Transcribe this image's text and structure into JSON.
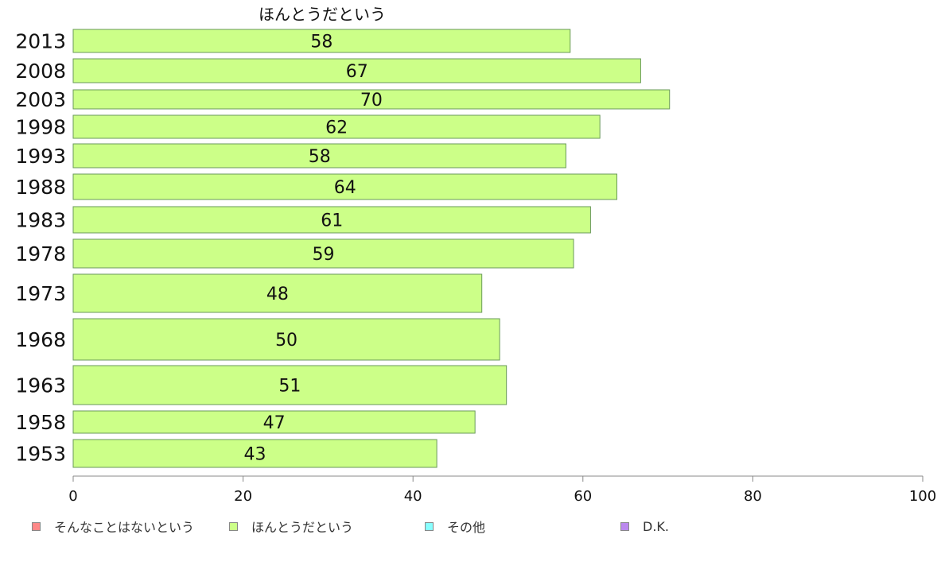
{
  "chart_data": {
    "type": "bar",
    "orientation": "horizontal",
    "title": "ほんとうだという",
    "categories": [
      "2013",
      "2008",
      "2003",
      "1998",
      "1993",
      "1988",
      "1983",
      "1978",
      "1973",
      "1968",
      "1963",
      "1958",
      "1953"
    ],
    "series": [
      {
        "name": "ほんとうだという",
        "color": "#ccff88",
        "values": [
          58.5,
          66.8,
          70.2,
          62,
          58,
          64,
          60.9,
          58.9,
          48.1,
          50.2,
          51,
          47.3,
          42.8
        ],
        "labels": [
          "58",
          "67",
          "70",
          "62",
          "58",
          "64",
          "61",
          "59",
          "48",
          "50",
          "51",
          "47",
          "43"
        ]
      }
    ],
    "xlim": [
      0,
      100
    ],
    "xticks": [
      "0",
      "20",
      "40",
      "60",
      "80",
      "100"
    ],
    "grid": false,
    "legend_position": "bottom"
  },
  "legend": [
    {
      "label": "そんなことはないという",
      "color": "#ff8888"
    },
    {
      "label": "ほんとうだという",
      "color": "#ccff88"
    },
    {
      "label": "その他",
      "color": "#88ffff"
    },
    {
      "label": "D.K.",
      "color": "#bb88ee"
    }
  ]
}
